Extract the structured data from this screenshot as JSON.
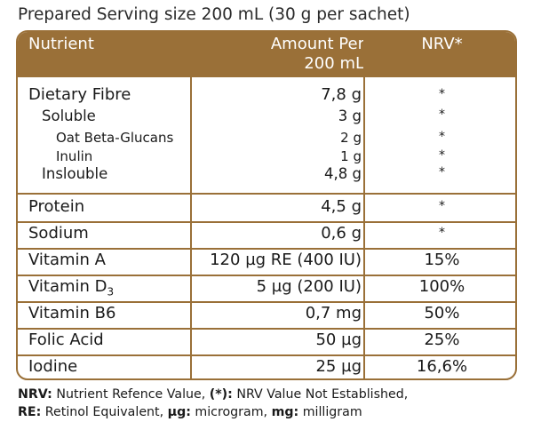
{
  "caption": "Prepared Serving size 200 mL (30 g per sachet)",
  "header": {
    "nutrient": "Nutrient",
    "amount_line1": "Amount Per",
    "amount_line2": "200 mL",
    "nrv": "NRV*"
  },
  "fibre_group": [
    {
      "name": "Dietary Fibre",
      "amount": "7,8 g",
      "nrv": "*",
      "level": 0
    },
    {
      "name": "Soluble",
      "amount": "3 g",
      "nrv": "*",
      "level": 1
    },
    {
      "name": "Oat Beta-Glucans",
      "amount": "2 g",
      "nrv": "*",
      "level": 2
    },
    {
      "name": "Inulin",
      "amount": "1 g",
      "nrv": "*",
      "level": 2
    },
    {
      "name": "Inslouble",
      "amount": "4,8 g",
      "nrv": "*",
      "level": 1
    }
  ],
  "rows": [
    {
      "name": "Protein",
      "amount": "4,5 g",
      "nrv": "*"
    },
    {
      "name": "Sodium",
      "amount": "0,6 g",
      "nrv": "*"
    },
    {
      "name": "Vitamin A",
      "amount": "120 µg RE (400 IU)",
      "nrv": "15%"
    },
    {
      "name": "Vitamin D",
      "name_sub": "3",
      "amount": "5 µg (200 IU)",
      "nrv": "100%"
    },
    {
      "name": "Vitamin B6",
      "amount": "0,7 mg",
      "nrv": "50%"
    },
    {
      "name": "Folic Acid",
      "amount": "50 µg",
      "nrv": "25%"
    },
    {
      "name": "Iodine",
      "amount": "25 µg",
      "nrv": "16,6%"
    }
  ],
  "footer": {
    "line1_term1": "NRV:",
    "line1_def1": " Nutrient Refence Value, ",
    "line1_term2": "(*):",
    "line1_def2": " NRV Value Not Established,",
    "line2_term1": "RE:",
    "line2_def1": " Retinol Equivalent, ",
    "line2_term2": "µg:",
    "line2_def2": " microgram, ",
    "line2_term3": "mg:",
    "line2_def3": " milligram"
  },
  "colors": {
    "accent": "#9a7038",
    "text": "#1a1a1a",
    "background": "#ffffff"
  }
}
